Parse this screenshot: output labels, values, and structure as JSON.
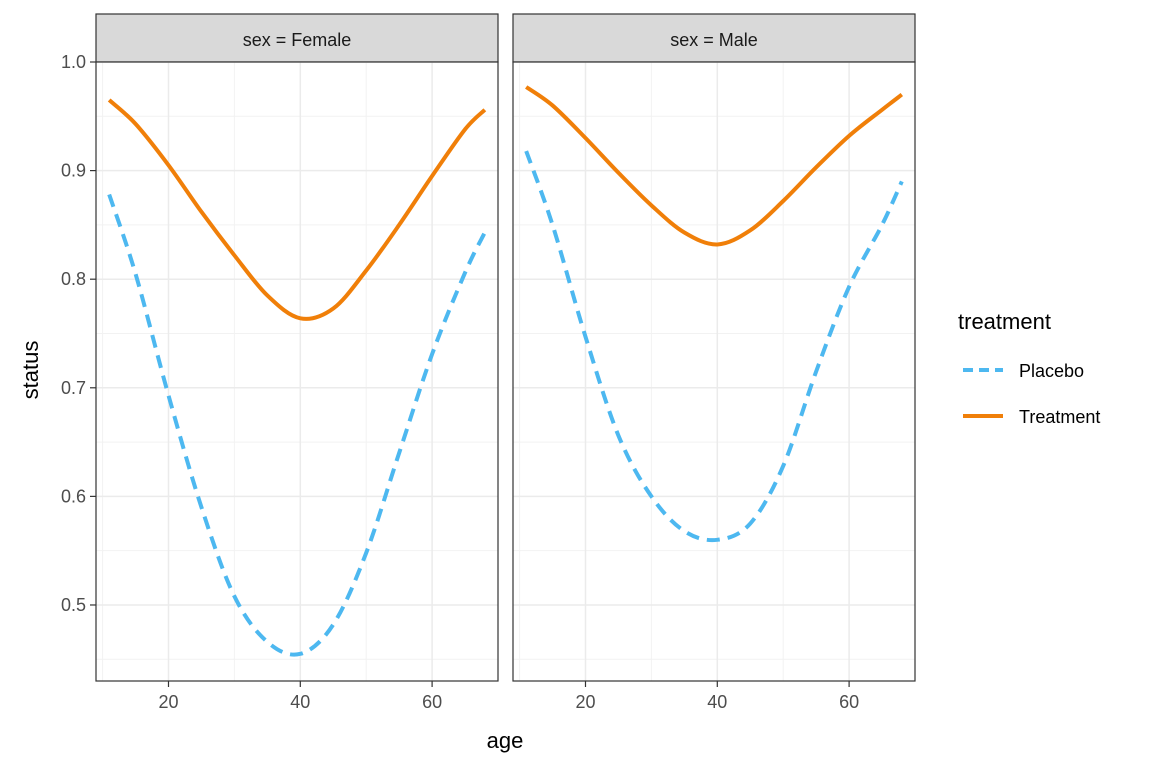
{
  "chart_data": {
    "type": "line",
    "xlabel": "age",
    "ylabel": "status",
    "xlim": [
      9,
      70
    ],
    "ylim": [
      0.43,
      1.0
    ],
    "x_ticks": [
      20,
      40,
      60
    ],
    "y_ticks": [
      0.5,
      0.6,
      0.7,
      0.8,
      0.9,
      1.0
    ],
    "y_tick_labels": [
      "0.5",
      "0.6",
      "0.7",
      "0.8",
      "0.9",
      "1.0"
    ],
    "legend": {
      "title": "treatment",
      "placement": "right",
      "entries": [
        {
          "name": "Placebo",
          "color": "#4db8f0",
          "dash": "dashed"
        },
        {
          "name": "Treatment",
          "color": "#f07f09",
          "dash": "solid"
        }
      ]
    },
    "panels": [
      {
        "strip": "sex = Female",
        "series": [
          {
            "name": "Placebo",
            "x": [
              11,
              15,
              20,
              25,
              30,
              35,
              40,
              45,
              50,
              55,
              60,
              65,
              68
            ],
            "y": [
              0.878,
              0.805,
              0.693,
              0.59,
              0.508,
              0.466,
              0.455,
              0.482,
              0.548,
              0.64,
              0.731,
              0.806,
              0.843
            ]
          },
          {
            "name": "Treatment",
            "x": [
              11,
              15,
              20,
              25,
              30,
              35,
              40,
              45,
              50,
              55,
              60,
              65,
              68
            ],
            "y": [
              0.965,
              0.943,
              0.905,
              0.862,
              0.822,
              0.785,
              0.764,
              0.773,
              0.808,
              0.85,
              0.895,
              0.938,
              0.956
            ]
          }
        ]
      },
      {
        "strip": "sex = Male",
        "series": [
          {
            "name": "Placebo",
            "x": [
              11,
              15,
              20,
              25,
              30,
              35,
              40,
              45,
              50,
              55,
              60,
              65,
              68
            ],
            "y": [
              0.918,
              0.85,
              0.747,
              0.656,
              0.6,
              0.568,
              0.56,
              0.575,
              0.628,
              0.715,
              0.793,
              0.85,
              0.89
            ]
          },
          {
            "name": "Treatment",
            "x": [
              11,
              15,
              20,
              25,
              30,
              35,
              40,
              45,
              50,
              55,
              60,
              65,
              68
            ],
            "y": [
              0.977,
              0.96,
              0.93,
              0.898,
              0.868,
              0.843,
              0.832,
              0.845,
              0.872,
              0.903,
              0.932,
              0.956,
              0.97
            ]
          }
        ]
      }
    ]
  }
}
